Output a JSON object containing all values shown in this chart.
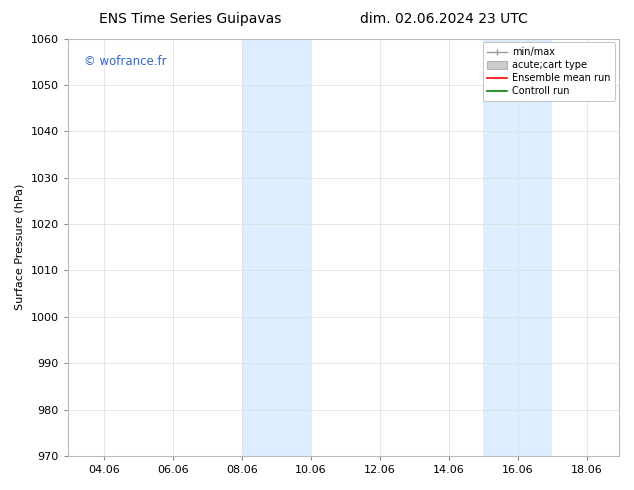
{
  "title_left": "ENS Time Series Guipavas",
  "title_right": "dim. 02.06.2024 23 UTC",
  "ylabel": "Surface Pressure (hPa)",
  "ylim": [
    970,
    1060
  ],
  "yticks": [
    970,
    980,
    990,
    1000,
    1010,
    1020,
    1030,
    1040,
    1050,
    1060
  ],
  "xlim": [
    3.0,
    19.0
  ],
  "xtick_positions": [
    4.06,
    6.06,
    8.06,
    10.06,
    12.06,
    14.06,
    16.06,
    18.06
  ],
  "xtick_labels": [
    "04.06",
    "06.06",
    "08.06",
    "10.06",
    "12.06",
    "14.06",
    "16.06",
    "18.06"
  ],
  "shaded_bands": [
    {
      "x_start": 8.06,
      "x_end": 10.06
    },
    {
      "x_start": 15.06,
      "x_end": 17.06
    }
  ],
  "shaded_color": "#ddeeff",
  "watermark_text": "© wofrance.fr",
  "watermark_color": "#3366cc",
  "background_color": "#ffffff",
  "grid_color": "#dddddd",
  "title_fontsize": 10,
  "label_fontsize": 8,
  "tick_fontsize": 8,
  "legend_fontsize": 7
}
